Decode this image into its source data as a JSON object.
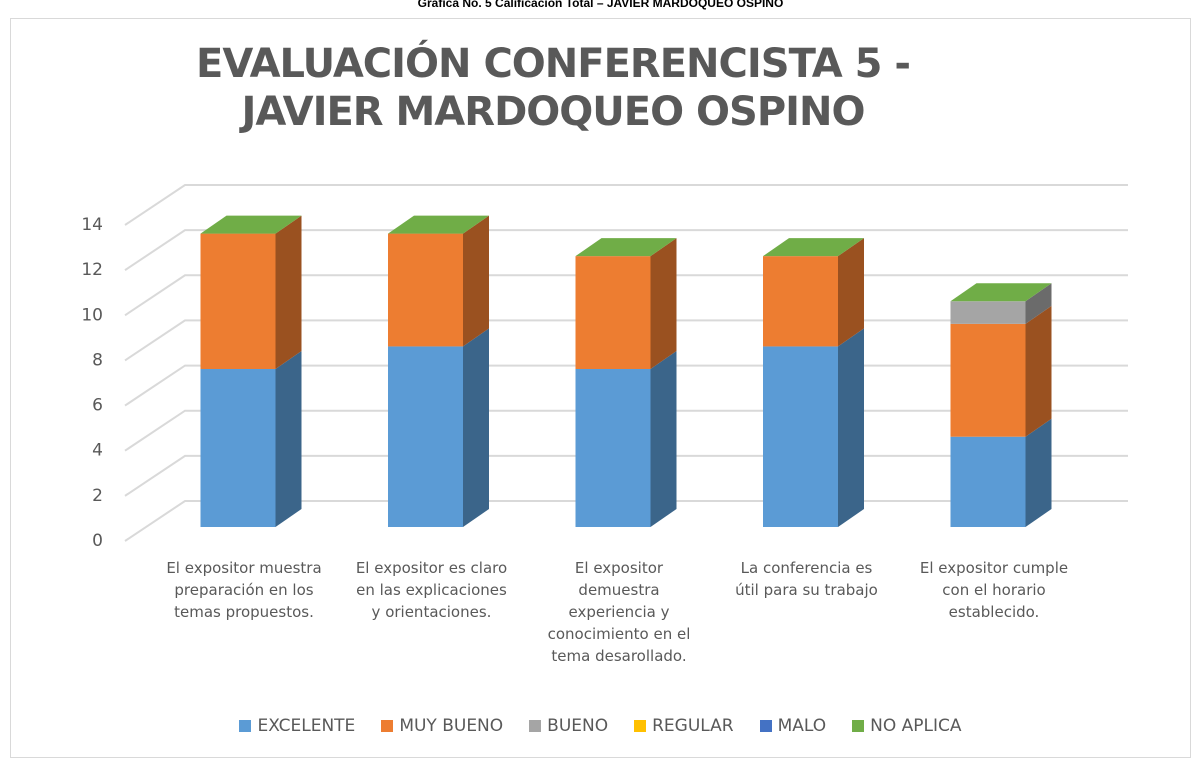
{
  "caption": "Gráfica No. 5 Calificación Total – JAVIER MARDOQUEO OSPINO",
  "chart_data": {
    "type": "bar3d_stacked",
    "title": "EVALUACIÓN CONFERENCISTA  5 -  JAVIER MARDOQUEO OSPINO",
    "categories": [
      "El expositor muestra preparación en los temas propuestos.",
      "El  expositor es claro en las explicaciones y orientaciones.",
      "El expositor demuestra experiencia y conocimiento en el tema desarollado.",
      "La conferencia es útil para su trabajo",
      "El expositor cumple con el horario establecido."
    ],
    "series": [
      {
        "name": "EXCELENTE",
        "color": "#5b9bd5",
        "values": [
          7,
          8,
          7,
          8,
          4
        ]
      },
      {
        "name": "MUY BUENO",
        "color": "#ed7d31",
        "values": [
          6,
          5,
          5,
          4,
          5
        ]
      },
      {
        "name": "BUENO",
        "color": "#a5a5a5",
        "values": [
          0,
          0,
          0,
          0,
          1
        ]
      },
      {
        "name": "REGULAR",
        "color": "#ffc000",
        "values": [
          0,
          0,
          0,
          0,
          0
        ]
      },
      {
        "name": "MALO",
        "color": "#4472c4",
        "values": [
          0,
          0,
          0,
          0,
          0
        ]
      },
      {
        "name": "NO APLICA",
        "color": "#70ad47",
        "values": [
          0,
          0,
          0,
          0,
          0
        ]
      }
    ],
    "ylim": [
      0,
      14
    ],
    "yticks": [
      0,
      2,
      4,
      6,
      8,
      10,
      12,
      14
    ],
    "grid": true,
    "legend": "bottom"
  }
}
